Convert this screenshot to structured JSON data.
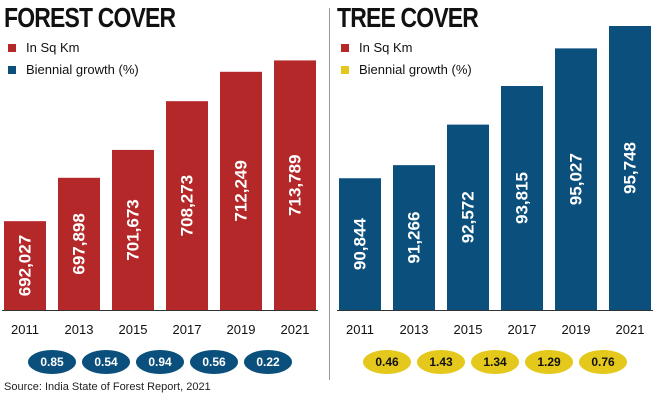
{
  "source": "Source: India State of Forest Report, 2021",
  "chart_data": [
    {
      "type": "bar",
      "title": "FOREST COVER",
      "categories": [
        "2011",
        "2013",
        "2015",
        "2017",
        "2019",
        "2021"
      ],
      "series": [
        {
          "name": "In Sq Km",
          "values": [
            692027,
            697898,
            701673,
            708273,
            712249,
            713789
          ],
          "color": "#b5282a"
        },
        {
          "name": "Biennial growth (%)",
          "values": [
            null,
            0.85,
            0.54,
            0.94,
            0.56,
            0.22
          ],
          "color": "#0b4f7c"
        }
      ],
      "value_labels": [
        "692,027",
        "697,898",
        "701,673",
        "708,273",
        "712,249",
        "713,789"
      ],
      "growth_labels": [
        "0.85",
        "0.54",
        "0.94",
        "0.56",
        "0.22"
      ],
      "growth_text_color": "#ffffff"
    },
    {
      "type": "bar",
      "title": "TREE COVER",
      "categories": [
        "2011",
        "2013",
        "2015",
        "2017",
        "2019",
        "2021"
      ],
      "series": [
        {
          "name": "In Sq Km",
          "values": [
            90844,
            91266,
            92572,
            93815,
            95027,
            95748
          ],
          "color": "#0b4f7c"
        },
        {
          "name": "Biennial growth (%)",
          "values": [
            null,
            0.46,
            1.43,
            1.34,
            1.29,
            0.76
          ],
          "color": "#e4c91c"
        }
      ],
      "value_labels": [
        "90,844",
        "91,266",
        "92,572",
        "93,815",
        "95,027",
        "95,748"
      ],
      "growth_labels": [
        "0.46",
        "1.43",
        "1.34",
        "1.29",
        "0.76"
      ],
      "growth_text_color": "#111111",
      "legend_swatch_colors": [
        "#b5282a",
        "#e4c91c"
      ]
    }
  ]
}
